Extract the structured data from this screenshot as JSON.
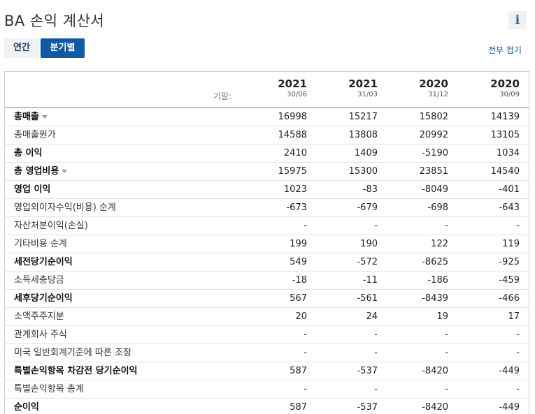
{
  "title": "BA 손익 계산서",
  "info_label": "i",
  "tabs": {
    "annual": "연간",
    "quarterly": "분기별"
  },
  "collapse_all": "전부 접기",
  "period_label": "기말:",
  "columns": [
    {
      "year": "2021",
      "date": "30/06"
    },
    {
      "year": "2021",
      "date": "31/03"
    },
    {
      "year": "2020",
      "date": "31/12"
    },
    {
      "year": "2020",
      "date": "30/09"
    }
  ],
  "rows": [
    {
      "label": "총매출",
      "bold": true,
      "expand": true,
      "values": [
        "16998",
        "15217",
        "15802",
        "14139"
      ]
    },
    {
      "label": "총매출원가",
      "bold": false,
      "expand": false,
      "values": [
        "14588",
        "13808",
        "20992",
        "13105"
      ]
    },
    {
      "label": "총 이익",
      "bold": true,
      "expand": false,
      "values": [
        "2410",
        "1409",
        "-5190",
        "1034"
      ]
    },
    {
      "label": "총 영업비용",
      "bold": true,
      "expand": true,
      "values": [
        "15975",
        "15300",
        "23851",
        "14540"
      ]
    },
    {
      "label": "영업 이익",
      "bold": true,
      "expand": false,
      "values": [
        "1023",
        "-83",
        "-8049",
        "-401"
      ]
    },
    {
      "label": "영업외이자수익(비용) 순계",
      "bold": false,
      "expand": false,
      "values": [
        "-673",
        "-679",
        "-698",
        "-643"
      ]
    },
    {
      "label": "자산처분이익(손실)",
      "bold": false,
      "expand": false,
      "values": [
        "-",
        "-",
        "-",
        "-"
      ]
    },
    {
      "label": "기타비용 순계",
      "bold": false,
      "expand": false,
      "values": [
        "199",
        "190",
        "122",
        "119"
      ]
    },
    {
      "label": "세전당기순이익",
      "bold": true,
      "expand": false,
      "values": [
        "549",
        "-572",
        "-8625",
        "-925"
      ]
    },
    {
      "label": "소득세충당금",
      "bold": false,
      "expand": false,
      "values": [
        "-18",
        "-11",
        "-186",
        "-459"
      ]
    },
    {
      "label": "세후당기순이익",
      "bold": true,
      "expand": false,
      "values": [
        "567",
        "-561",
        "-8439",
        "-466"
      ]
    },
    {
      "label": "소액주주지분",
      "bold": false,
      "expand": false,
      "values": [
        "20",
        "24",
        "19",
        "17"
      ]
    },
    {
      "label": "관계회사 주식",
      "bold": false,
      "expand": false,
      "values": [
        "-",
        "-",
        "-",
        "-"
      ]
    },
    {
      "label": "미국 일반회계기준에 따른 조정",
      "bold": false,
      "expand": false,
      "values": [
        "-",
        "-",
        "-",
        "-"
      ]
    },
    {
      "label": "특별손익항목 차감전 당기순이익",
      "bold": true,
      "expand": false,
      "values": [
        "587",
        "-537",
        "-8420",
        "-449"
      ]
    },
    {
      "label": "특별손익항목 총계",
      "bold": false,
      "expand": false,
      "values": [
        "-",
        "-",
        "-",
        "-"
      ]
    },
    {
      "label": "순이익",
      "bold": true,
      "expand": false,
      "values": [
        "587",
        "-537",
        "-8420",
        "-449"
      ]
    }
  ]
}
